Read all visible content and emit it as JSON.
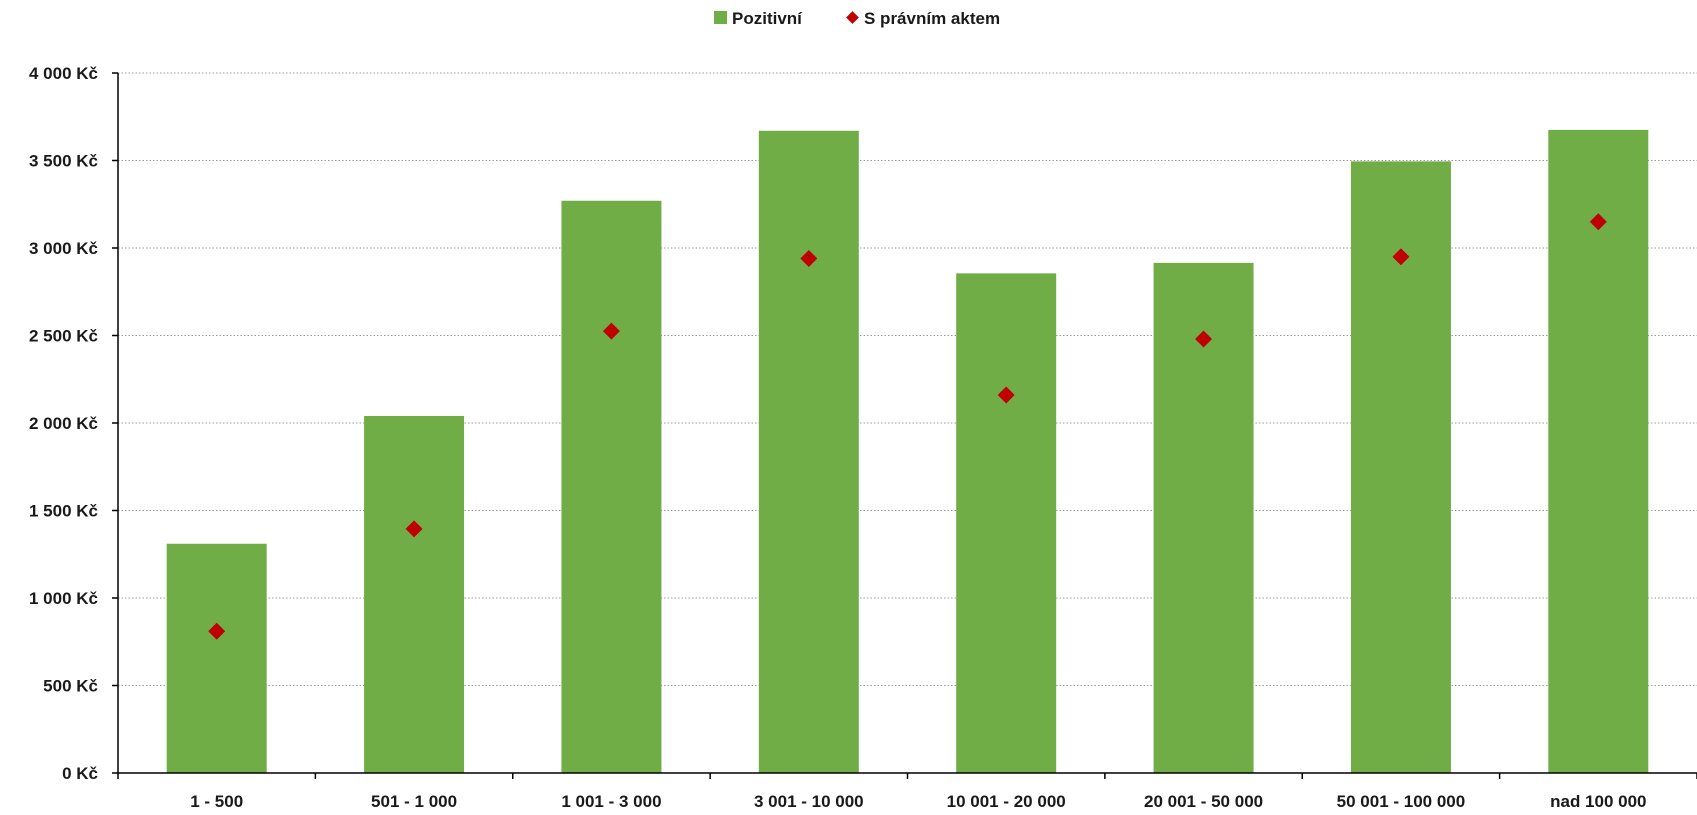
{
  "chart_data": {
    "type": "bar",
    "categories": [
      "1 - 500",
      "501 - 1 000",
      "1 001 - 3 000",
      "3 001 - 10 000",
      "10 001 - 20 000",
      "20 001 - 50 000",
      "50 001 - 100 000",
      "nad 100 000"
    ],
    "series": [
      {
        "name": "Pozitivní",
        "type": "bar",
        "color": "#70ad47",
        "values": [
          1310,
          2040,
          3270,
          3670,
          2855,
          2915,
          3495,
          3675
        ]
      },
      {
        "name": "S právním aktem",
        "type": "scatter",
        "marker": "diamond",
        "color": "#c00000",
        "values": [
          810,
          1395,
          2525,
          2940,
          2160,
          2480,
          2950,
          3150
        ]
      }
    ],
    "y_ticks": [
      "0 Kč",
      "500 Kč",
      "1 000 Kč",
      "1 500 Kč",
      "2 000 Kč",
      "2 500 Kč",
      "3 000 Kč",
      "3 500 Kč",
      "4 000 Kč"
    ],
    "ylim": [
      0,
      4000
    ],
    "grid": "horizontal dotted",
    "legend": "top-center",
    "title": "",
    "xlabel": "",
    "ylabel": ""
  }
}
